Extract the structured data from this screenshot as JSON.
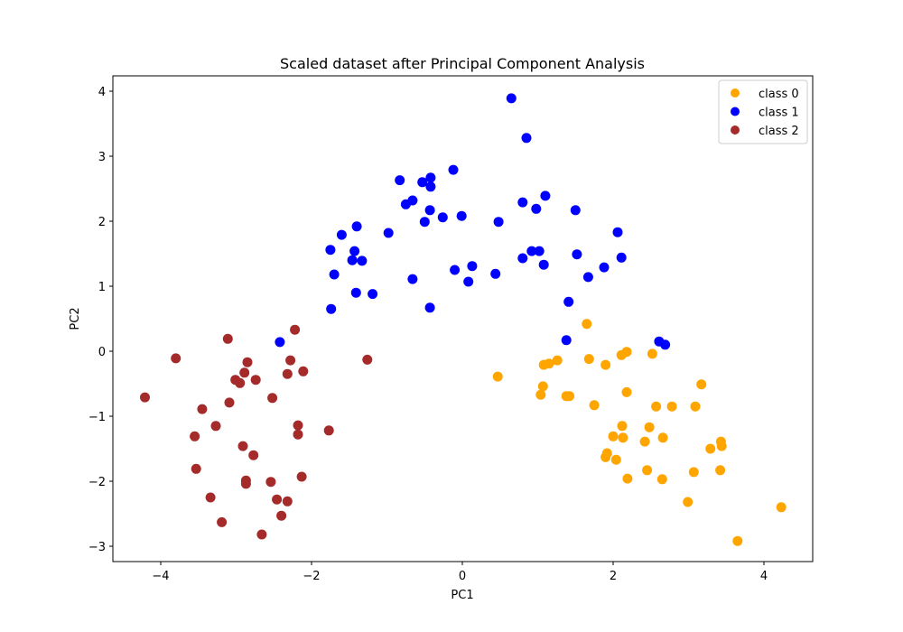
{
  "chart_data": {
    "type": "scatter",
    "title": "Scaled dataset after Principal Component Analysis",
    "xlabel": "PC1",
    "ylabel": "PC2",
    "xlim": [
      -4.64,
      4.64
    ],
    "ylim": [
      -3.24,
      4.24
    ],
    "xticks": [
      -4,
      -2,
      0,
      2,
      4
    ],
    "yticks": [
      -3,
      -2,
      -1,
      0,
      1,
      2,
      3,
      4
    ],
    "grid": false,
    "legend_position": "upper right",
    "series": [
      {
        "name": "class 0",
        "color": "#ffa500",
        "points": [
          [
            1.65,
            0.42
          ],
          [
            0.47,
            -0.39
          ],
          [
            1.08,
            -0.21
          ],
          [
            1.15,
            -0.19
          ],
          [
            1.26,
            -0.14
          ],
          [
            1.68,
            -0.12
          ],
          [
            1.9,
            -0.21
          ],
          [
            2.11,
            -0.06
          ],
          [
            2.18,
            -0.01
          ],
          [
            1.07,
            -0.54
          ],
          [
            1.04,
            -0.67
          ],
          [
            1.38,
            -0.69
          ],
          [
            1.42,
            -0.69
          ],
          [
            1.75,
            -0.83
          ],
          [
            2.18,
            -0.63
          ],
          [
            2.52,
            -0.04
          ],
          [
            3.17,
            -0.51
          ],
          [
            2.57,
            -0.85
          ],
          [
            2.78,
            -0.85
          ],
          [
            3.09,
            -0.85
          ],
          [
            2.48,
            -1.17
          ],
          [
            2.12,
            -1.15
          ],
          [
            2.0,
            -1.31
          ],
          [
            2.13,
            -1.33
          ],
          [
            2.42,
            -1.39
          ],
          [
            2.66,
            -1.33
          ],
          [
            3.43,
            -1.39
          ],
          [
            3.44,
            -1.46
          ],
          [
            3.29,
            -1.5
          ],
          [
            1.92,
            -1.57
          ],
          [
            1.9,
            -1.63
          ],
          [
            2.04,
            -1.67
          ],
          [
            2.45,
            -1.83
          ],
          [
            3.42,
            -1.83
          ],
          [
            3.07,
            -1.86
          ],
          [
            2.19,
            -1.96
          ],
          [
            2.65,
            -1.97
          ],
          [
            2.99,
            -2.32
          ],
          [
            3.65,
            -2.92
          ],
          [
            4.23,
            -2.4
          ]
        ]
      },
      {
        "name": "class 1",
        "color": "#0000ff",
        "points": [
          [
            0.65,
            3.89
          ],
          [
            0.85,
            3.28
          ],
          [
            1.1,
            2.39
          ],
          [
            0.8,
            2.29
          ],
          [
            0.98,
            2.19
          ],
          [
            1.5,
            2.17
          ],
          [
            -0.12,
            2.79
          ],
          [
            -0.83,
            2.63
          ],
          [
            -0.53,
            2.6
          ],
          [
            -0.42,
            2.67
          ],
          [
            -0.42,
            2.53
          ],
          [
            -0.75,
            2.26
          ],
          [
            -0.66,
            2.32
          ],
          [
            -0.43,
            2.17
          ],
          [
            -0.26,
            2.06
          ],
          [
            -0.01,
            2.08
          ],
          [
            -0.5,
            1.99
          ],
          [
            0.48,
            1.99
          ],
          [
            -1.4,
            1.92
          ],
          [
            -1.6,
            1.79
          ],
          [
            -0.98,
            1.82
          ],
          [
            -1.75,
            1.56
          ],
          [
            -1.43,
            1.54
          ],
          [
            -1.46,
            1.4
          ],
          [
            -1.33,
            1.39
          ],
          [
            -1.7,
            1.18
          ],
          [
            -0.66,
            1.11
          ],
          [
            -0.1,
            1.25
          ],
          [
            0.13,
            1.31
          ],
          [
            0.44,
            1.19
          ],
          [
            0.08,
            1.07
          ],
          [
            -1.41,
            0.9
          ],
          [
            -1.19,
            0.88
          ],
          [
            -1.74,
            0.65
          ],
          [
            -0.43,
            0.67
          ],
          [
            2.06,
            1.83
          ],
          [
            0.8,
            1.43
          ],
          [
            0.92,
            1.54
          ],
          [
            1.02,
            1.54
          ],
          [
            1.08,
            1.33
          ],
          [
            1.52,
            1.49
          ],
          [
            2.11,
            1.44
          ],
          [
            1.88,
            1.29
          ],
          [
            1.67,
            1.14
          ],
          [
            1.41,
            0.76
          ],
          [
            1.38,
            0.17
          ],
          [
            2.61,
            0.15
          ],
          [
            2.69,
            0.1
          ],
          [
            -2.42,
            0.14
          ]
        ]
      },
      {
        "name": "class 2",
        "color": "#a52a2a",
        "points": [
          [
            -4.21,
            -0.71
          ],
          [
            -3.8,
            -0.11
          ],
          [
            -3.11,
            0.19
          ],
          [
            -2.22,
            0.33
          ],
          [
            -2.85,
            -0.17
          ],
          [
            -2.28,
            -0.14
          ],
          [
            -1.26,
            -0.13
          ],
          [
            -2.89,
            -0.33
          ],
          [
            -2.32,
            -0.35
          ],
          [
            -2.11,
            -0.31
          ],
          [
            -3.01,
            -0.44
          ],
          [
            -2.95,
            -0.49
          ],
          [
            -2.74,
            -0.44
          ],
          [
            -2.52,
            -0.72
          ],
          [
            -3.45,
            -0.89
          ],
          [
            -3.09,
            -0.79
          ],
          [
            -3.27,
            -1.15
          ],
          [
            -2.18,
            -1.14
          ],
          [
            -2.18,
            -1.28
          ],
          [
            -1.77,
            -1.22
          ],
          [
            -3.55,
            -1.31
          ],
          [
            -2.91,
            -1.46
          ],
          [
            -2.77,
            -1.6
          ],
          [
            -3.53,
            -1.81
          ],
          [
            -2.87,
            -1.99
          ],
          [
            -2.87,
            -2.04
          ],
          [
            -2.54,
            -2.01
          ],
          [
            -2.13,
            -1.93
          ],
          [
            -3.34,
            -2.25
          ],
          [
            -2.46,
            -2.28
          ],
          [
            -2.32,
            -2.31
          ],
          [
            -2.4,
            -2.53
          ],
          [
            -3.19,
            -2.63
          ],
          [
            -2.66,
            -2.82
          ]
        ]
      }
    ]
  }
}
